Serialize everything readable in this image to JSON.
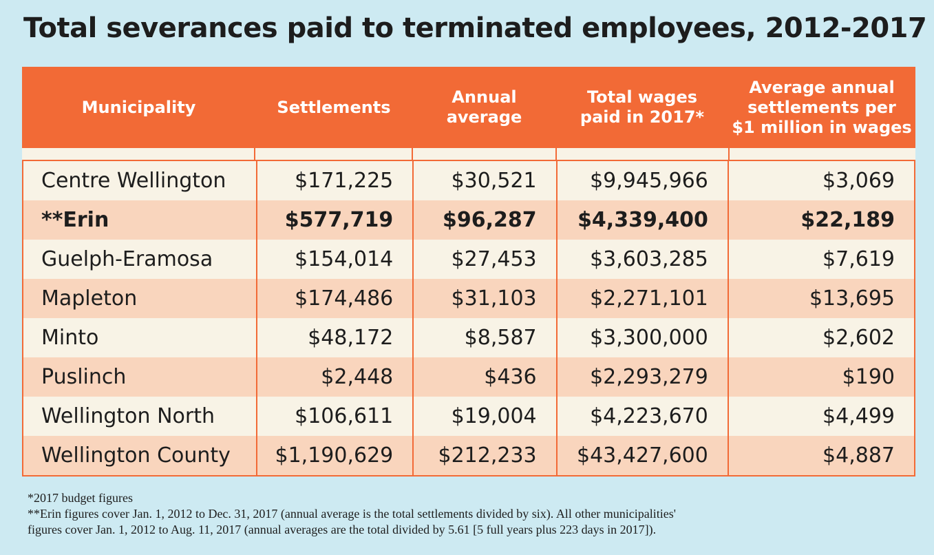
{
  "title": "Total severances paid to terminated employees, 2012-2017",
  "colors": {
    "header": "#f26a36",
    "row_light": "#f8f3e6",
    "row_dark": "#f9d5bd",
    "background": "#cdeaf2"
  },
  "chart_data": {
    "type": "table",
    "columns": [
      "Municipality",
      "Settlements",
      "Annual average",
      "Total wages paid in 2017*",
      "Average annual settlements per $1 million in wages"
    ],
    "header_lines": [
      [
        "Municipality"
      ],
      [
        "Settlements"
      ],
      [
        "Annual",
        "average"
      ],
      [
        "Total wages",
        "paid in 2017*"
      ],
      [
        "Average annual",
        "settlements per",
        "$1 million in wages"
      ]
    ],
    "rows": [
      [
        "Centre Wellington",
        "$171,225",
        "$30,521",
        "$9,945,966",
        "$3,069"
      ],
      [
        "**Erin",
        "$577,719",
        "$96,287",
        "$4,339,400",
        "$22,189"
      ],
      [
        "Guelph-Eramosa",
        "$154,014",
        "$27,453",
        "$3,603,285",
        "$7,619"
      ],
      [
        "Mapleton",
        "$174,486",
        "$31,103",
        "$2,271,101",
        "$13,695"
      ],
      [
        "Minto",
        "$48,172",
        "$8,587",
        "$3,300,000",
        "$2,602"
      ],
      [
        "Puslinch",
        "$2,448",
        "$436",
        "$2,293,279",
        "$190"
      ],
      [
        "Wellington North",
        "$106,611",
        "$19,004",
        "$4,223,670",
        "$4,499"
      ],
      [
        "Wellington County",
        "$1,190,629",
        "$212,233",
        "$43,427,600",
        "$4,887"
      ]
    ],
    "highlighted_row": "**Erin"
  },
  "notes": [
    "*2017 budget figures",
    "**Erin figures cover Jan. 1, 2012 to Dec. 31, 2017 (annual average is the total settlements divided by six). All other municipalities'",
    "figures cover Jan. 1, 2012 to Aug. 11, 2017 (annual averages are the total divided by 5.61 [5 full years plus 223 days in 2017])."
  ]
}
